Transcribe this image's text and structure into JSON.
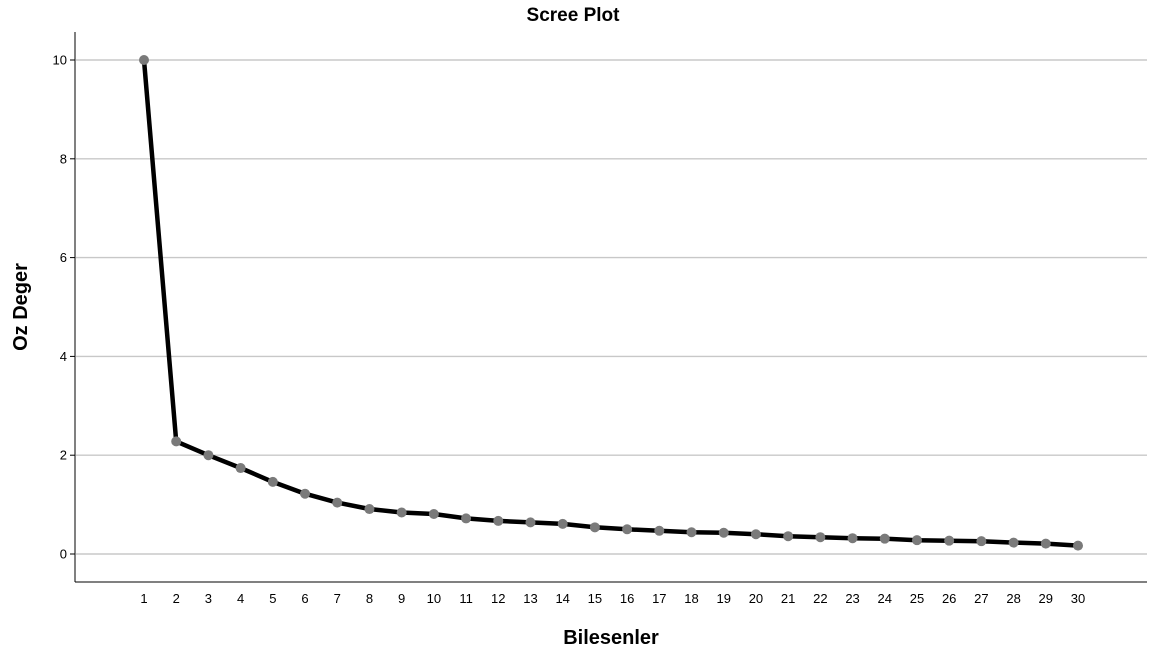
{
  "chart_data": {
    "type": "line",
    "title": "Scree Plot",
    "xlabel": "Bilesenler",
    "ylabel": "Oz Deger",
    "x": [
      1,
      2,
      3,
      4,
      5,
      6,
      7,
      8,
      9,
      10,
      11,
      12,
      13,
      14,
      15,
      16,
      17,
      18,
      19,
      20,
      21,
      22,
      23,
      24,
      25,
      26,
      27,
      28,
      29,
      30
    ],
    "y": [
      10.0,
      2.28,
      2.0,
      1.74,
      1.46,
      1.22,
      1.04,
      0.91,
      0.84,
      0.81,
      0.72,
      0.67,
      0.64,
      0.61,
      0.54,
      0.5,
      0.47,
      0.44,
      0.43,
      0.4,
      0.36,
      0.34,
      0.32,
      0.31,
      0.28,
      0.27,
      0.26,
      0.23,
      0.21,
      0.17
    ],
    "yticks": [
      0,
      2,
      4,
      6,
      8,
      10
    ],
    "ylim": [
      -0.55,
      10.55
    ],
    "grid": true,
    "line_color": "#000000",
    "marker_color": "#7a7a7a"
  }
}
